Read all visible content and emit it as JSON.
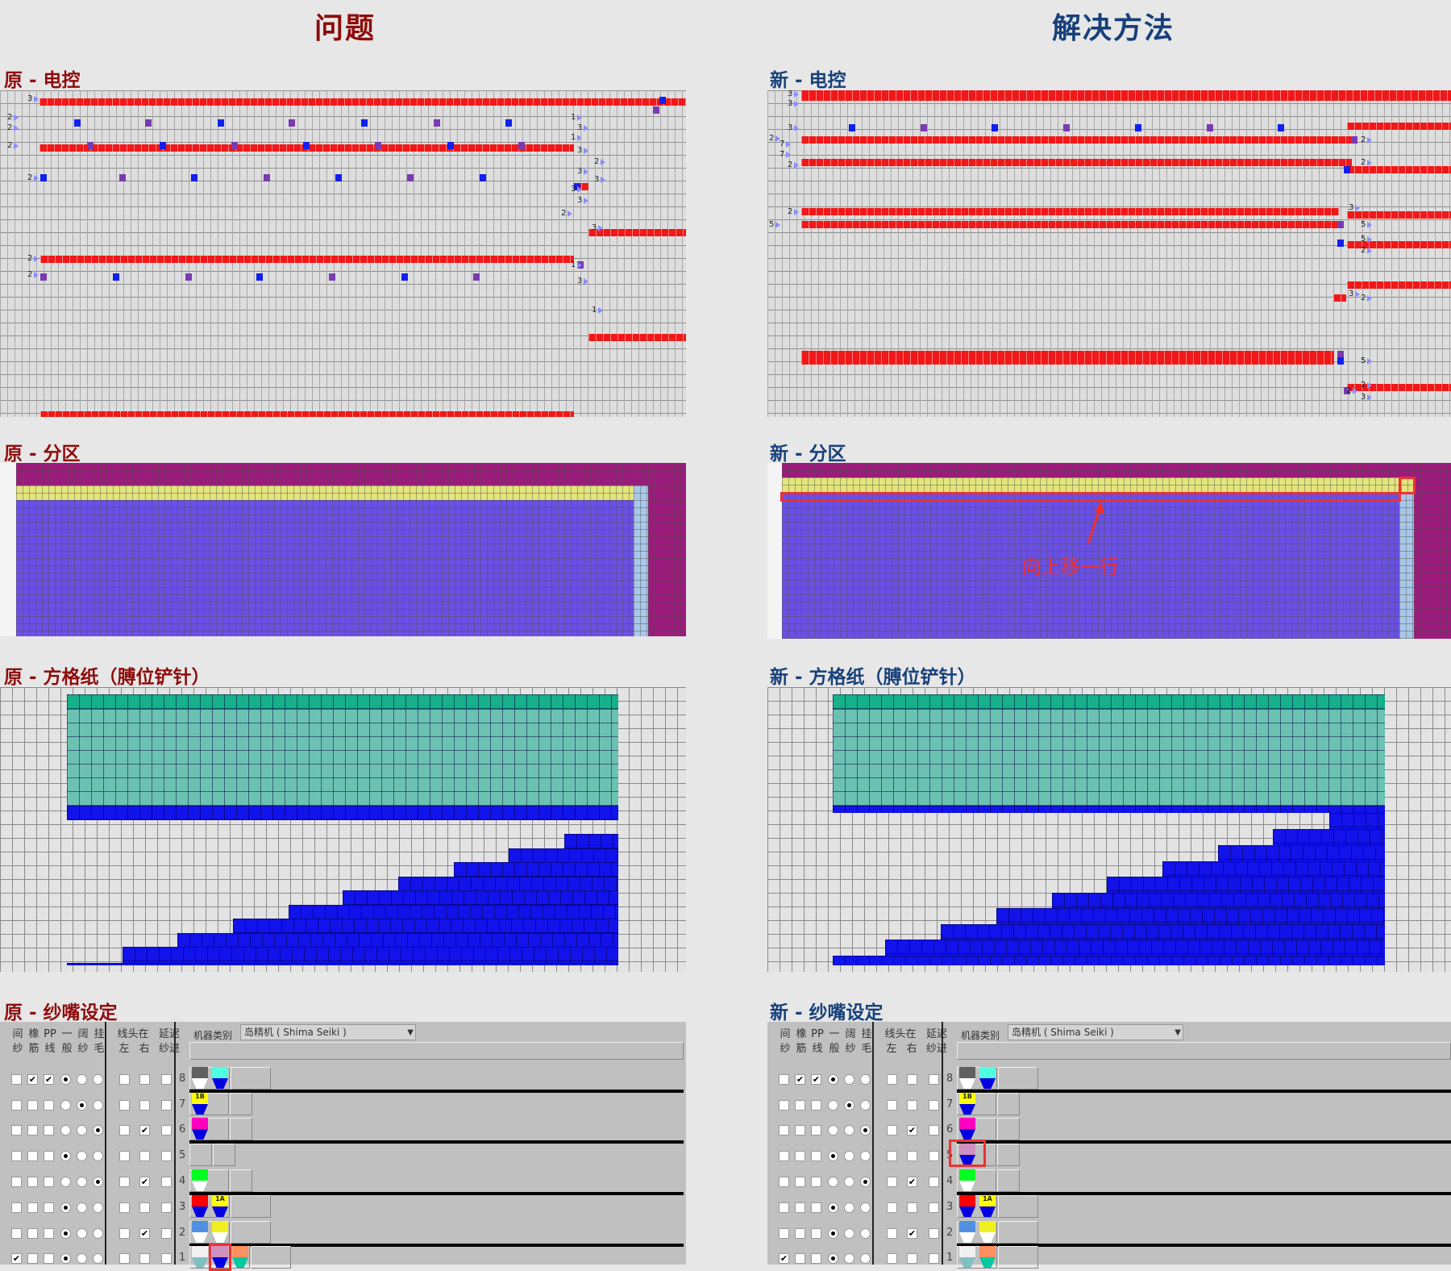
{
  "titles": {
    "problem": "问题",
    "solution": "解决方法"
  },
  "colors": {
    "problem": "#8e0b0b",
    "solution": "#17407a",
    "annotation": "#f03030"
  },
  "left": {
    "electronic_label": "原 - 电控",
    "partition_label": "原 - 分区",
    "paper_label": "原 - 方格纸（膊位铲针）",
    "yarn_label": "原 - 纱嘴设定",
    "markers": [
      "3",
      "2",
      "2",
      "2",
      "2",
      "2",
      "2",
      "1",
      "3",
      "1",
      "3",
      "2",
      "3",
      "3",
      "3",
      "3",
      "2",
      "3",
      "1",
      "3",
      "1"
    ]
  },
  "right": {
    "electronic_label": "新 - 电控",
    "partition_label": "新 - 分区",
    "paper_label": "新 - 方格纸（膊位铲针）",
    "yarn_label": "新 - 纱嘴设定",
    "annotation": "向上移一行",
    "markers": [
      "3",
      "3",
      "3",
      "2",
      "7",
      "7",
      "2",
      "2",
      "5",
      "2",
      "2",
      "3",
      "5",
      "5",
      "2",
      "3",
      "2",
      "5",
      "2",
      "3",
      "2"
    ]
  },
  "yarn": {
    "headers_top": [
      "间",
      "橡",
      "PP",
      "一",
      "阔",
      "挂"
    ],
    "headers_bottom": [
      "纱",
      "筋",
      "线",
      "般",
      "纱",
      "毛"
    ],
    "thread_top": [
      "线头在",
      "",
      "延迟"
    ],
    "thread_bottom": [
      "左",
      "右",
      "纱进"
    ],
    "machine_label": "机器类别",
    "machine_value": "岛精机 ( Shima Seiki )",
    "rows": [
      {
        "num": "8",
        "checks": [
          false,
          true,
          true
        ],
        "radio": 0,
        "thread": [
          false,
          false,
          false
        ]
      },
      {
        "num": "7",
        "checks": [
          false,
          false,
          false
        ],
        "radio": 1,
        "thread": [
          false,
          false,
          false
        ]
      },
      {
        "num": "6",
        "checks": [
          false,
          false,
          false
        ],
        "radio": 2,
        "thread": [
          false,
          true,
          false
        ]
      },
      {
        "num": "5",
        "checks": [
          false,
          false,
          false
        ],
        "radio": 0,
        "thread": [
          false,
          false,
          false
        ]
      },
      {
        "num": "4",
        "checks": [
          false,
          false,
          false
        ],
        "radio": 2,
        "thread": [
          false,
          true,
          false
        ]
      },
      {
        "num": "3",
        "checks": [
          false,
          false,
          false
        ],
        "radio": 0,
        "thread": [
          false,
          false,
          false
        ]
      },
      {
        "num": "2",
        "checks": [
          false,
          false,
          false
        ],
        "radio": 0,
        "thread": [
          false,
          true,
          false
        ]
      },
      {
        "num": "1",
        "checks": [
          true,
          false,
          false
        ],
        "radio": 0,
        "thread": [
          false,
          false,
          false
        ]
      }
    ],
    "left_carriers": [
      [
        {
          "top": "#606060",
          "bottom": "#ffffff",
          "label": ""
        },
        {
          "top": "#50ffe0",
          "bottom": "#0000e0",
          "label": ""
        }
      ],
      [
        {
          "top": "#ffff00",
          "bottom": "#0000e0",
          "label": "1B"
        }
      ],
      [
        {
          "top": "#ff00c0",
          "bottom": "#0000e0",
          "label": ""
        }
      ],
      [],
      [
        {
          "top": "#00ff20",
          "bottom": "#ffffff",
          "label": ""
        }
      ],
      [
        {
          "top": "#ff0000",
          "bottom": "#0000e0",
          "label": ""
        },
        {
          "top": "#ffff00",
          "bottom": "#0000e0",
          "label": "1A"
        }
      ],
      [
        {
          "top": "#5090e0",
          "bottom": "#ffffff",
          "label": ""
        },
        {
          "top": "#f0f020",
          "bottom": "#ffffff",
          "label": ""
        }
      ],
      [
        {
          "top": "#f0f0f0",
          "bottom": "#80c0c0",
          "label": ""
        },
        {
          "top": "#d090c0",
          "bottom": "#0000e0",
          "label": "",
          "highlight": true
        },
        {
          "top": "#ff9060",
          "bottom": "#00c8a0",
          "label": ""
        }
      ]
    ],
    "right_carriers": [
      [
        {
          "top": "#606060",
          "bottom": "#ffffff",
          "label": ""
        },
        {
          "top": "#50ffe0",
          "bottom": "#0000e0",
          "label": ""
        }
      ],
      [
        {
          "top": "#ffff00",
          "bottom": "#0000e0",
          "label": "1B"
        }
      ],
      [
        {
          "top": "#ff00c0",
          "bottom": "#0000e0",
          "label": ""
        }
      ],
      [
        {
          "top": "#d090c0",
          "bottom": "#0000e0",
          "label": "",
          "highlight": true
        }
      ],
      [
        {
          "top": "#00ff20",
          "bottom": "#ffffff",
          "label": ""
        }
      ],
      [
        {
          "top": "#ff0000",
          "bottom": "#0000e0",
          "label": ""
        },
        {
          "top": "#ffff00",
          "bottom": "#0000e0",
          "label": "1A"
        }
      ],
      [
        {
          "top": "#5090e0",
          "bottom": "#ffffff",
          "label": ""
        },
        {
          "top": "#f0f020",
          "bottom": "#ffffff",
          "label": ""
        }
      ],
      [
        {
          "top": "#f0f0f0",
          "bottom": "#80c0c0",
          "label": ""
        },
        {
          "top": "#ff9060",
          "bottom": "#00c8a0",
          "label": ""
        }
      ]
    ]
  }
}
